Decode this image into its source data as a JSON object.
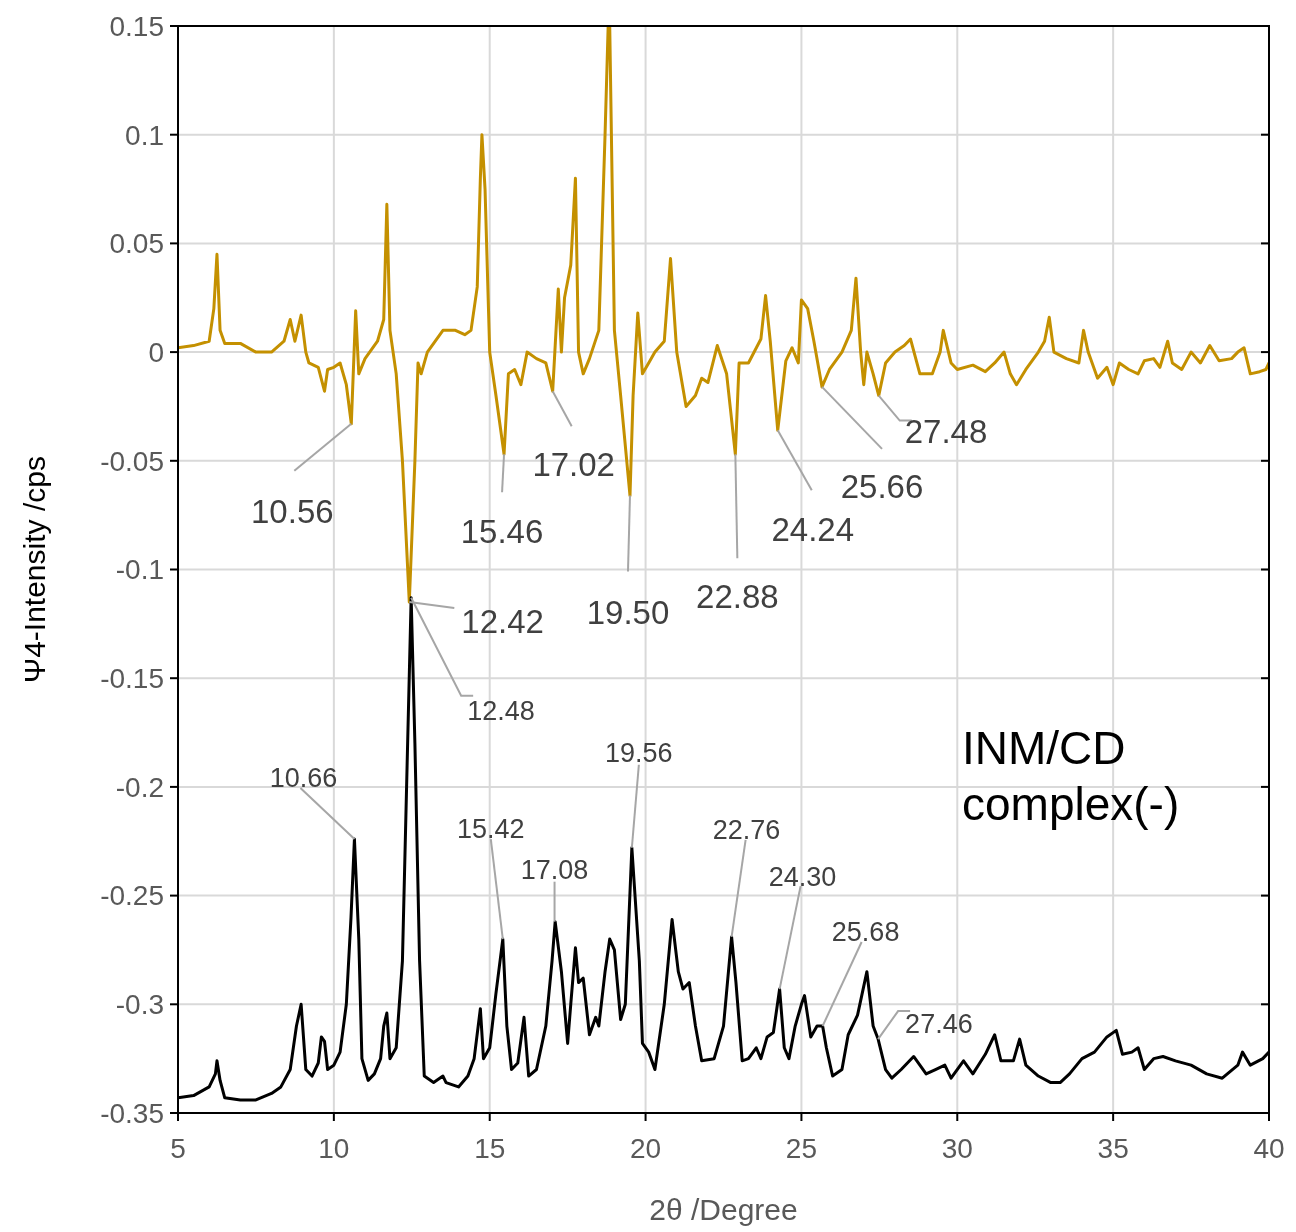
{
  "chart_data": {
    "type": "line",
    "xlabel": "2θ /Degree",
    "ylabel": "Ψ4-Intensity /cps",
    "xlim": [
      5,
      40
    ],
    "ylim": [
      -0.35,
      0.15
    ],
    "xticks": [
      5,
      10,
      15,
      20,
      25,
      30,
      35,
      40
    ],
    "yticks": [
      -0.35,
      -0.3,
      -0.25,
      -0.2,
      -0.15,
      -0.1,
      -0.05,
      0,
      0.05,
      0.1,
      0.15
    ],
    "grid": true,
    "marker": "none",
    "line_style": "solid",
    "series": [
      {
        "color": "#c49000",
        "x": [
          5.0,
          5.5,
          6.0,
          6.15,
          6.25,
          6.35,
          6.5,
          7.0,
          7.5,
          8.0,
          8.4,
          8.6,
          8.75,
          8.95,
          9.1,
          9.2,
          9.5,
          9.7,
          9.8,
          10.0,
          10.2,
          10.4,
          10.56,
          10.7,
          10.8,
          11.0,
          11.4,
          11.6,
          11.7,
          11.8,
          12.0,
          12.2,
          12.42,
          12.6,
          12.7,
          12.8,
          13.0,
          13.5,
          13.9,
          14.2,
          14.4,
          14.6,
          14.7,
          14.75,
          14.85,
          15.0,
          15.2,
          15.46,
          15.6,
          15.8,
          16.0,
          16.2,
          16.5,
          16.8,
          17.02,
          17.2,
          17.3,
          17.4,
          17.6,
          17.75,
          17.85,
          18.0,
          18.2,
          18.5,
          18.7,
          18.8,
          18.85,
          19.0,
          19.2,
          19.5,
          19.6,
          19.75,
          19.9,
          20.1,
          20.3,
          20.6,
          20.8,
          21.0,
          21.3,
          21.6,
          21.8,
          22.0,
          22.3,
          22.6,
          22.88,
          23.0,
          23.3,
          23.7,
          23.85,
          24.0,
          24.24,
          24.5,
          24.7,
          24.9,
          25.0,
          25.2,
          25.4,
          25.66,
          25.9,
          26.3,
          26.6,
          26.75,
          26.9,
          27.0,
          27.1,
          27.3,
          27.48,
          27.7,
          28.0,
          28.3,
          28.5,
          28.8,
          29.2,
          29.45,
          29.55,
          29.8,
          30.0,
          30.5,
          30.9,
          31.2,
          31.5,
          31.7,
          31.9,
          32.2,
          32.6,
          32.8,
          32.95,
          33.1,
          33.5,
          33.9,
          34.05,
          34.2,
          34.5,
          34.8,
          35.0,
          35.2,
          35.5,
          35.8,
          36.0,
          36.3,
          36.5,
          36.75,
          36.9,
          37.2,
          37.5,
          37.8,
          38.1,
          38.4,
          38.8,
          39.0,
          39.2,
          39.4,
          39.7,
          39.9,
          40.0
        ],
        "values": [
          0.002,
          0.003,
          0.005,
          0.02,
          0.045,
          0.01,
          0.004,
          0.004,
          0.0,
          0.0,
          0.005,
          0.015,
          0.005,
          0.017,
          0.0,
          -0.005,
          -0.007,
          -0.018,
          -0.008,
          -0.007,
          -0.005,
          -0.015,
          -0.033,
          0.019,
          -0.01,
          -0.003,
          0.005,
          0.015,
          0.068,
          0.01,
          -0.01,
          -0.05,
          -0.115,
          -0.05,
          -0.005,
          -0.01,
          0.0,
          0.01,
          0.01,
          0.008,
          0.01,
          0.03,
          0.08,
          0.1,
          0.075,
          0.0,
          -0.02,
          -0.047,
          -0.01,
          -0.008,
          -0.015,
          0.0,
          -0.003,
          -0.005,
          -0.018,
          0.029,
          0.0,
          0.025,
          0.04,
          0.08,
          0.0,
          -0.01,
          -0.003,
          0.01,
          0.1,
          0.15,
          0.15,
          0.01,
          -0.02,
          -0.066,
          -0.02,
          0.018,
          -0.01,
          -0.005,
          0.0,
          0.005,
          0.043,
          0.0,
          -0.025,
          -0.02,
          -0.012,
          -0.014,
          0.003,
          -0.01,
          -0.047,
          -0.005,
          -0.005,
          0.006,
          0.026,
          0.005,
          -0.036,
          -0.004,
          0.002,
          -0.005,
          0.024,
          0.02,
          0.005,
          -0.016,
          -0.008,
          0.0,
          0.01,
          0.034,
          0.0,
          -0.015,
          0.0,
          -0.01,
          -0.02,
          -0.005,
          0.0,
          0.003,
          0.006,
          -0.01,
          -0.01,
          0.0,
          0.01,
          -0.005,
          -0.008,
          -0.006,
          -0.009,
          -0.005,
          0.0,
          -0.01,
          -0.015,
          -0.008,
          0.0,
          0.005,
          0.016,
          0.0,
          -0.003,
          -0.005,
          0.01,
          0.0,
          -0.012,
          -0.007,
          -0.015,
          -0.005,
          -0.008,
          -0.01,
          -0.004,
          -0.003,
          -0.007,
          0.005,
          -0.005,
          -0.008,
          0.0,
          -0.005,
          0.003,
          -0.004,
          -0.003,
          0.0,
          0.002,
          -0.01,
          -0.009,
          -0.008,
          -0.005
        ]
      },
      {
        "color": "#000000",
        "x": [
          5.0,
          5.5,
          6.0,
          6.2,
          6.25,
          6.35,
          6.5,
          7.0,
          7.5,
          8.0,
          8.3,
          8.6,
          8.8,
          8.95,
          9.1,
          9.3,
          9.5,
          9.6,
          9.7,
          9.8,
          10.0,
          10.2,
          10.4,
          10.55,
          10.66,
          10.8,
          10.9,
          11.1,
          11.3,
          11.5,
          11.6,
          11.7,
          11.8,
          12.0,
          12.2,
          12.35,
          12.48,
          12.6,
          12.75,
          12.9,
          13.2,
          13.5,
          13.6,
          14.0,
          14.3,
          14.5,
          14.7,
          14.8,
          15.0,
          15.2,
          15.42,
          15.55,
          15.7,
          15.9,
          16.1,
          16.25,
          16.5,
          16.8,
          17.0,
          17.1,
          17.3,
          17.5,
          17.6,
          17.75,
          17.85,
          18.0,
          18.2,
          18.4,
          18.5,
          18.7,
          18.85,
          19.0,
          19.2,
          19.35,
          19.56,
          19.8,
          19.9,
          20.1,
          20.3,
          20.6,
          20.85,
          21.05,
          21.2,
          21.4,
          21.6,
          21.8,
          22.2,
          22.5,
          22.76,
          22.9,
          23.1,
          23.3,
          23.55,
          23.7,
          23.9,
          24.1,
          24.3,
          24.45,
          24.6,
          24.8,
          25.0,
          25.1,
          25.3,
          25.5,
          25.68,
          25.8,
          26.0,
          26.3,
          26.5,
          26.8,
          27.1,
          27.3,
          27.46,
          27.7,
          27.9,
          28.2,
          28.6,
          28.8,
          29.0,
          29.3,
          29.6,
          29.8,
          30.2,
          30.5,
          30.9,
          31.2,
          31.4,
          31.8,
          32.0,
          32.2,
          32.6,
          33.0,
          33.3,
          33.6,
          34.0,
          34.4,
          34.8,
          35.1,
          35.3,
          35.6,
          35.8,
          36.0,
          36.3,
          36.6,
          37.0,
          37.5,
          38.0,
          38.5,
          39.0,
          39.15,
          39.4,
          39.8,
          40.0
        ],
        "values": [
          -0.343,
          -0.342,
          -0.338,
          -0.332,
          -0.326,
          -0.335,
          -0.343,
          -0.344,
          -0.344,
          -0.341,
          -0.338,
          -0.33,
          -0.31,
          -0.3,
          -0.33,
          -0.333,
          -0.327,
          -0.315,
          -0.317,
          -0.33,
          -0.328,
          -0.322,
          -0.3,
          -0.26,
          -0.224,
          -0.27,
          -0.325,
          -0.335,
          -0.332,
          -0.325,
          -0.31,
          -0.304,
          -0.325,
          -0.32,
          -0.28,
          -0.19,
          -0.113,
          -0.18,
          -0.28,
          -0.333,
          -0.336,
          -0.333,
          -0.336,
          -0.338,
          -0.333,
          -0.325,
          -0.302,
          -0.325,
          -0.32,
          -0.295,
          -0.27,
          -0.31,
          -0.33,
          -0.327,
          -0.306,
          -0.333,
          -0.33,
          -0.31,
          -0.28,
          -0.262,
          -0.285,
          -0.318,
          -0.3,
          -0.274,
          -0.29,
          -0.288,
          -0.314,
          -0.306,
          -0.31,
          -0.285,
          -0.27,
          -0.275,
          -0.307,
          -0.3,
          -0.228,
          -0.28,
          -0.318,
          -0.322,
          -0.33,
          -0.3,
          -0.261,
          -0.285,
          -0.293,
          -0.29,
          -0.31,
          -0.326,
          -0.325,
          -0.31,
          -0.269,
          -0.29,
          -0.326,
          -0.325,
          -0.32,
          -0.325,
          -0.315,
          -0.313,
          -0.293,
          -0.32,
          -0.325,
          -0.31,
          -0.3,
          -0.296,
          -0.315,
          -0.31,
          -0.31,
          -0.32,
          -0.333,
          -0.33,
          -0.314,
          -0.305,
          -0.285,
          -0.31,
          -0.316,
          -0.33,
          -0.334,
          -0.33,
          -0.324,
          -0.328,
          -0.332,
          -0.33,
          -0.328,
          -0.334,
          -0.326,
          -0.332,
          -0.323,
          -0.314,
          -0.326,
          -0.326,
          -0.316,
          -0.328,
          -0.333,
          -0.336,
          -0.336,
          -0.332,
          -0.325,
          -0.322,
          -0.315,
          -0.312,
          -0.323,
          -0.322,
          -0.32,
          -0.33,
          -0.325,
          -0.324,
          -0.326,
          -0.328,
          -0.332,
          -0.334,
          -0.328,
          -0.322,
          -0.328,
          -0.325,
          -0.322
        ]
      }
    ],
    "annotations": [
      {
        "text": "10.56",
        "x": 10.56,
        "y": -0.033
      },
      {
        "text": "12.42",
        "x": 12.42,
        "y": -0.115
      },
      {
        "text": "15.46",
        "x": 15.46,
        "y": -0.047
      },
      {
        "text": "17.02",
        "x": 17.02,
        "y": -0.018
      },
      {
        "text": "19.50",
        "x": 19.5,
        "y": -0.066
      },
      {
        "text": "22.88",
        "x": 22.88,
        "y": -0.047
      },
      {
        "text": "24.24",
        "x": 24.24,
        "y": -0.036
      },
      {
        "text": "25.66",
        "x": 25.66,
        "y": -0.016
      },
      {
        "text": "27.48",
        "x": 27.48,
        "y": -0.02
      },
      {
        "text": "12.48",
        "x": 12.48,
        "y": -0.113
      },
      {
        "text": "10.66",
        "x": 10.66,
        "y": -0.224
      },
      {
        "text": "15.42",
        "x": 15.42,
        "y": -0.27
      },
      {
        "text": "17.08",
        "x": 17.08,
        "y": -0.262
      },
      {
        "text": "19.56",
        "x": 19.56,
        "y": -0.228
      },
      {
        "text": "22.76",
        "x": 22.76,
        "y": -0.269
      },
      {
        "text": "24.30",
        "x": 24.3,
        "y": -0.293
      },
      {
        "text": "25.68",
        "x": 25.68,
        "y": -0.31
      },
      {
        "text": "27.46",
        "x": 27.46,
        "y": -0.316
      },
      "INM/CD complex(-)"
    ]
  }
}
